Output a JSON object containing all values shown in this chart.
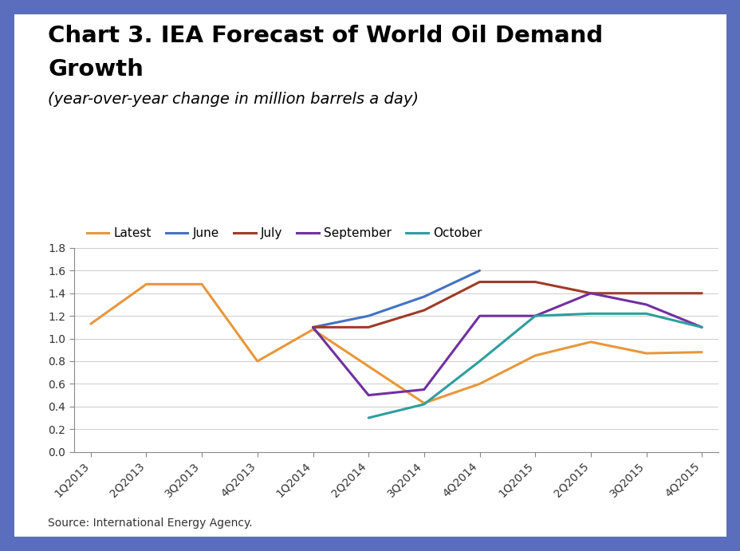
{
  "title_line1": "Chart 3. IEA Forecast of World Oil Demand",
  "title_line2": "Growth",
  "subtitle": "(year-over-year change in million barrels a day)",
  "source": "Source: International Energy Agency.",
  "x_labels": [
    "1Q2013",
    "2Q2013",
    "3Q2013",
    "4Q2013",
    "1Q2014",
    "2Q2014",
    "3Q2014",
    "4Q2014",
    "1Q2015",
    "2Q2015",
    "3Q2015",
    "4Q2015"
  ],
  "series_order": [
    "Latest",
    "June",
    "July",
    "September",
    "October"
  ],
  "series": {
    "Latest": {
      "color": "#E8973A",
      "data_x": [
        0,
        1,
        2,
        3,
        4,
        6,
        7,
        8,
        9,
        10,
        11
      ],
      "data_y": [
        1.13,
        1.48,
        1.48,
        0.8,
        1.08,
        0.43,
        0.6,
        0.85,
        0.97,
        0.87,
        0.88
      ]
    },
    "June": {
      "color": "#4472C4",
      "data_x": [
        4,
        5,
        6,
        7
      ],
      "data_y": [
        1.1,
        1.2,
        1.37,
        1.6
      ]
    },
    "July": {
      "color": "#9E3B28",
      "data_x": [
        4,
        5,
        6,
        7,
        8,
        9,
        10,
        11
      ],
      "data_y": [
        1.1,
        1.1,
        1.25,
        1.5,
        1.5,
        1.4,
        1.4,
        1.4
      ]
    },
    "September": {
      "color": "#7030A0",
      "data_x": [
        4,
        5,
        6,
        7,
        8,
        9,
        10,
        11
      ],
      "data_y": [
        1.1,
        0.5,
        0.55,
        1.2,
        1.2,
        1.4,
        1.3,
        1.1
      ]
    },
    "October": {
      "color": "#2E9E9E",
      "data_x": [
        5,
        6,
        7,
        8,
        9,
        10,
        11
      ],
      "data_y": [
        0.3,
        0.42,
        0.8,
        1.2,
        1.22,
        1.22,
        1.1
      ]
    }
  },
  "ylim": [
    0.0,
    1.8
  ],
  "yticks": [
    0.0,
    0.2,
    0.4,
    0.6,
    0.8,
    1.0,
    1.2,
    1.4,
    1.6,
    1.8
  ],
  "panel_bg": "#FFFFFF",
  "border_color": "#5B6EBE",
  "title_fontsize": 21,
  "subtitle_fontsize": 14,
  "legend_fontsize": 11,
  "axis_fontsize": 10,
  "source_fontsize": 10,
  "line_width": 2.2
}
